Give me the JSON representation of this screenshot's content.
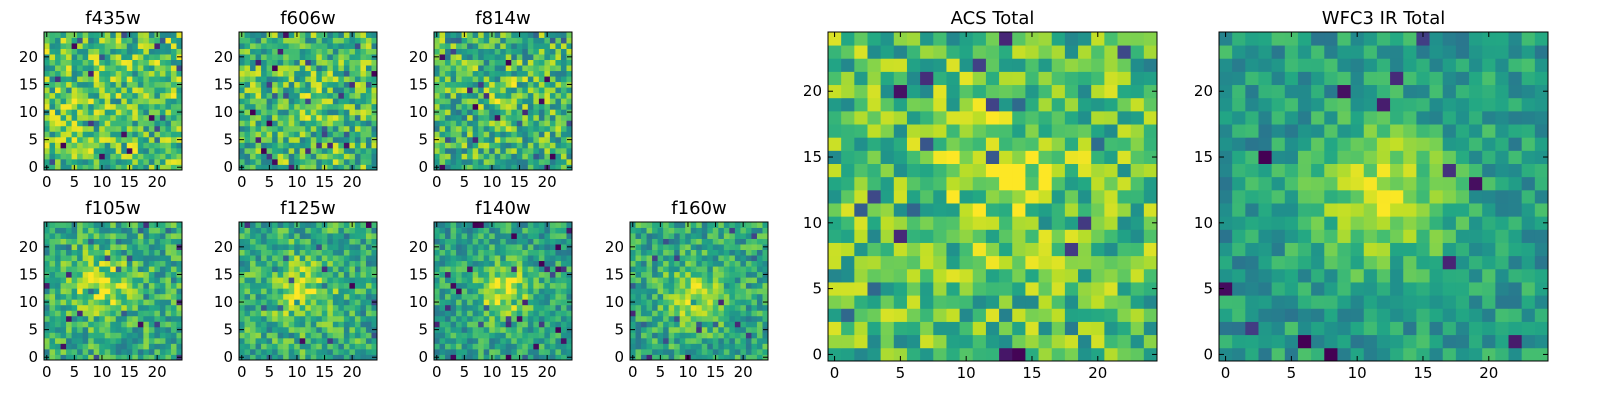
{
  "chart_data": [
    {
      "type": "heatmap",
      "title": "f435w",
      "xlim": [
        0,
        25
      ],
      "ylim": [
        0,
        25
      ],
      "xticks": [
        "0",
        "5",
        "10",
        "15",
        "20"
      ],
      "yticks": [
        "0",
        "5",
        "10",
        "15",
        "20"
      ],
      "colormap": "viridis",
      "grid_size": 25,
      "blob": {
        "cx": 12,
        "cy": 12,
        "sigma": 4,
        "amp": 0.0
      },
      "noise": 1.0,
      "base": 0.72,
      "seed": 11
    },
    {
      "type": "heatmap",
      "title": "f606w",
      "xlim": [
        0,
        25
      ],
      "ylim": [
        0,
        25
      ],
      "xticks": [
        "0",
        "5",
        "10",
        "15",
        "20"
      ],
      "yticks": [
        "0",
        "5",
        "10",
        "15",
        "20"
      ],
      "colormap": "viridis",
      "grid_size": 25,
      "blob": {
        "cx": 12,
        "cy": 12,
        "sigma": 4,
        "amp": 0.05
      },
      "noise": 1.0,
      "base": 0.68,
      "seed": 23
    },
    {
      "type": "heatmap",
      "title": "f814w",
      "xlim": [
        0,
        25
      ],
      "ylim": [
        0,
        25
      ],
      "xticks": [
        "0",
        "5",
        "10",
        "15",
        "20"
      ],
      "yticks": [
        "0",
        "5",
        "10",
        "15",
        "20"
      ],
      "colormap": "viridis",
      "grid_size": 25,
      "blob": {
        "cx": 12,
        "cy": 13,
        "sigma": 3,
        "amp": 0.12
      },
      "noise": 1.0,
      "base": 0.66,
      "seed": 37
    },
    {
      "type": "heatmap",
      "title": "f105w",
      "xlim": [
        0,
        25
      ],
      "ylim": [
        0,
        25
      ],
      "xticks": [
        "0",
        "5",
        "10",
        "15",
        "20"
      ],
      "yticks": [
        "0",
        "5",
        "10",
        "15",
        "20"
      ],
      "colormap": "viridis",
      "grid_size": 25,
      "blob": {
        "cx": 10,
        "cy": 13,
        "sigma": 4,
        "amp": 0.25
      },
      "noise": 0.8,
      "base": 0.62,
      "seed": 41
    },
    {
      "type": "heatmap",
      "title": "f125w",
      "xlim": [
        0,
        25
      ],
      "ylim": [
        0,
        25
      ],
      "xticks": [
        "0",
        "5",
        "10",
        "15",
        "20"
      ],
      "yticks": [
        "0",
        "5",
        "10",
        "15",
        "20"
      ],
      "colormap": "viridis",
      "grid_size": 25,
      "blob": {
        "cx": 11,
        "cy": 12,
        "sigma": 4,
        "amp": 0.25
      },
      "noise": 0.8,
      "base": 0.62,
      "seed": 53
    },
    {
      "type": "heatmap",
      "title": "f140w",
      "xlim": [
        0,
        25
      ],
      "ylim": [
        0,
        25
      ],
      "xticks": [
        "0",
        "5",
        "10",
        "15",
        "20"
      ],
      "yticks": [
        "0",
        "5",
        "10",
        "15",
        "20"
      ],
      "colormap": "viridis",
      "grid_size": 25,
      "blob": {
        "cx": 12,
        "cy": 12,
        "sigma": 3.5,
        "amp": 0.35
      },
      "noise": 0.7,
      "base": 0.58,
      "seed": 67
    },
    {
      "type": "heatmap",
      "title": "f160w",
      "xlim": [
        0,
        25
      ],
      "ylim": [
        0,
        25
      ],
      "xticks": [
        "0",
        "5",
        "10",
        "15",
        "20"
      ],
      "yticks": [
        "0",
        "5",
        "10",
        "15",
        "20"
      ],
      "colormap": "viridis",
      "grid_size": 25,
      "blob": {
        "cx": 11,
        "cy": 11,
        "sigma": 3.5,
        "amp": 0.32
      },
      "noise": 0.75,
      "base": 0.6,
      "seed": 79
    },
    {
      "type": "heatmap",
      "title": "ACS Total",
      "xlim": [
        0,
        25
      ],
      "ylim": [
        0,
        25
      ],
      "xticks": [
        "0",
        "5",
        "10",
        "15",
        "20"
      ],
      "yticks": [
        "0",
        "5",
        "10",
        "15",
        "20"
      ],
      "colormap": "viridis",
      "grid_size": 25,
      "blob": {
        "cx": 13,
        "cy": 13,
        "sigma": 4,
        "amp": 0.15
      },
      "noise": 0.9,
      "base": 0.7,
      "seed": 97
    },
    {
      "type": "heatmap",
      "title": "WFC3 IR Total",
      "xlim": [
        0,
        25
      ],
      "ylim": [
        0,
        25
      ],
      "xticks": [
        "0",
        "5",
        "10",
        "15",
        "20"
      ],
      "yticks": [
        "0",
        "5",
        "10",
        "15",
        "20"
      ],
      "colormap": "viridis",
      "grid_size": 25,
      "blob": {
        "cx": 12,
        "cy": 12,
        "sigma": 3.5,
        "amp": 0.4
      },
      "noise": 0.6,
      "base": 0.55,
      "seed": 113
    }
  ]
}
